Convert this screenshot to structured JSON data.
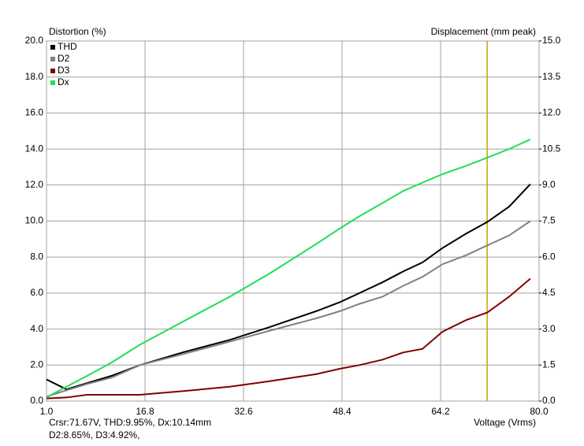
{
  "chart_data": {
    "type": "line",
    "ylabel": "Distortion (%)",
    "y2label": "Displacement (mm peak)",
    "xlabel": "Voltage (Vrms)",
    "x": [
      1,
      4.2,
      7.5,
      11.4,
      16,
      22.8,
      30.4,
      36.7,
      44.3,
      48.1,
      51.2,
      54.9,
      58.2,
      61.3,
      64.5,
      68.3,
      71.7,
      75.2,
      78.6
    ],
    "series": [
      {
        "name": "THD",
        "color": "#000000",
        "values": [
          1.2,
          0.65,
          1.0,
          1.4,
          2.0,
          2.7,
          3.4,
          4.1,
          5.0,
          5.5,
          6.0,
          6.6,
          7.2,
          7.7,
          8.5,
          9.3,
          9.95,
          10.8,
          12.05
        ]
      },
      {
        "name": "D2",
        "color": "#808080",
        "values": [
          0.25,
          0.6,
          0.95,
          1.3,
          2.0,
          2.6,
          3.3,
          3.9,
          4.6,
          5.0,
          5.4,
          5.8,
          6.4,
          6.9,
          7.6,
          8.1,
          8.65,
          9.2,
          10.0
        ]
      },
      {
        "name": "D3",
        "color": "#800000",
        "values": [
          0.15,
          0.2,
          0.35,
          0.35,
          0.35,
          0.55,
          0.8,
          1.1,
          1.5,
          1.8,
          2.0,
          2.3,
          2.7,
          2.9,
          3.85,
          4.5,
          4.92,
          5.8,
          6.8
        ]
      },
      {
        "name": "Dx",
        "color": "#22dd55",
        "axis": "y2",
        "values": [
          0.15,
          0.6,
          1.05,
          1.6,
          2.35,
          3.3,
          4.35,
          5.3,
          6.55,
          7.2,
          7.7,
          8.25,
          8.75,
          9.1,
          9.45,
          9.8,
          10.14,
          10.5,
          10.9
        ]
      }
    ],
    "xlim": [
      1,
      80
    ],
    "xticks": [
      {
        "value": 1,
        "label": "1.0"
      },
      16.8,
      32.6,
      48.4,
      64.2,
      {
        "value": 80,
        "label": "80.0"
      }
    ],
    "ylim": [
      0,
      20
    ],
    "yticks": [
      {
        "value": 0,
        "label": "0.0"
      },
      {
        "value": 2,
        "label": "2.0"
      },
      {
        "value": 4,
        "label": "4.0"
      },
      {
        "value": 6,
        "label": "6.0"
      },
      {
        "value": 8,
        "label": "8.0"
      },
      {
        "value": 10,
        "label": "10.0"
      },
      {
        "value": 12,
        "label": "12.0"
      },
      {
        "value": 14,
        "label": "14.0"
      },
      {
        "value": 16,
        "label": "16.0"
      },
      {
        "value": 18,
        "label": "18.0"
      },
      {
        "value": 20,
        "label": "20.0"
      }
    ],
    "y2lim": [
      0,
      15
    ],
    "y2ticks": [
      {
        "value": 0,
        "label": "0.0"
      },
      1.5,
      {
        "value": 3,
        "label": "3.0"
      },
      4.5,
      {
        "value": 6,
        "label": "6.0"
      },
      7.5,
      {
        "value": 9,
        "label": "9.0"
      },
      10.5,
      {
        "value": 12,
        "label": "12.0"
      },
      13.5,
      {
        "value": 15,
        "label": "15.0"
      }
    ],
    "grid": true,
    "legend": "top-left",
    "cursor": {
      "x": 71.67,
      "color": "#c8a000",
      "text": [
        "Crsr:71.67V, THD:9.95%, Dx:10.14mm",
        "D2:8.65%, D3:4.92%,"
      ]
    }
  }
}
